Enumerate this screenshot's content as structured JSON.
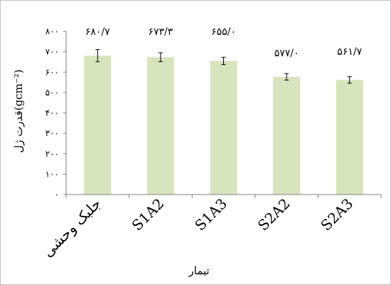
{
  "chart_data": {
    "type": "bar",
    "categories": [
      "جلبک وحشی",
      "S1A2",
      "S1A3",
      "S2A2",
      "S2A3"
    ],
    "values": [
      680.7,
      673.3,
      655.0,
      577.0,
      561.7
    ],
    "errors": [
      30,
      22,
      18,
      16,
      16
    ],
    "data_labels": [
      "۶۸۰/۷",
      "۶۷۳/۳",
      "۶۵۵/۰",
      "۵۷۷/۰",
      "۵۶۱/۷"
    ],
    "ylim": [
      0,
      800
    ],
    "yticks": [
      0,
      100,
      200,
      300,
      400,
      500,
      600,
      700,
      800
    ],
    "ytick_labels": [
      "۰",
      "۱۰۰",
      "۲۰۰",
      "۳۰۰",
      "۴۰۰",
      "۵۰۰",
      "۶۰۰",
      "۷۰۰",
      "۸۰۰"
    ],
    "xlabel": "تیمار",
    "ylabel": "قدرت ژل(gcm⁻²)",
    "grid": false,
    "bar_color": "#d7e4bd",
    "error_color": "#000000"
  }
}
